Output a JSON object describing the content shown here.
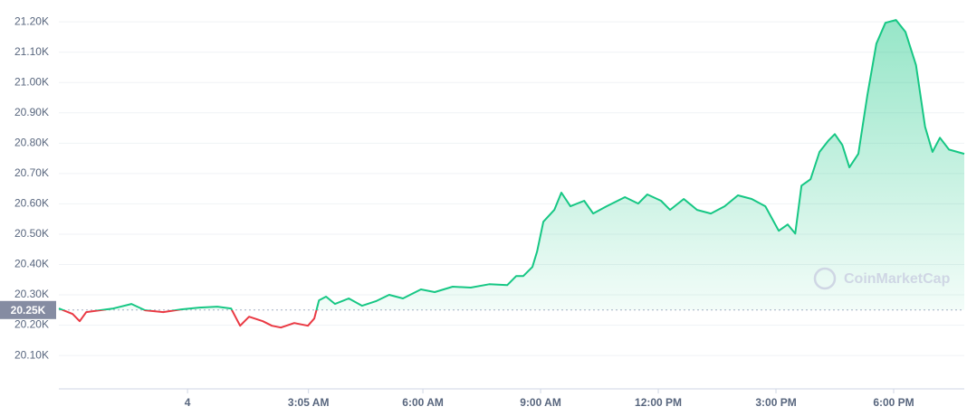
{
  "chart_data": {
    "type": "line",
    "watermark": "CoinMarketCap",
    "series": [
      {
        "color": "#16c784",
        "color_below": "#ea3943",
        "x": [
          -3.28,
          -2.93,
          -2.75,
          -2.58,
          -2.24,
          -1.89,
          -1.43,
          -1.08,
          -0.62,
          -0.16,
          0.3,
          0.76,
          1.11,
          1.34,
          1.57,
          1.92,
          2.15,
          2.38,
          2.72,
          3.07,
          3.23,
          3.35,
          3.53,
          3.76,
          4.11,
          4.45,
          4.8,
          5.14,
          5.49,
          5.95,
          6.3,
          6.76,
          7.22,
          7.69,
          8.15,
          8.38,
          8.56,
          8.79,
          8.91,
          9.07,
          9.35,
          9.53,
          9.76,
          10.11,
          10.34,
          10.68,
          11.15,
          11.49,
          11.72,
          12.07,
          12.3,
          12.65,
          12.99,
          13.34,
          13.69,
          14.03,
          14.38,
          14.73,
          15.07,
          15.3,
          15.49,
          15.65,
          15.88,
          16.11,
          16.34,
          16.5,
          16.69,
          16.87,
          17.1,
          17.33,
          17.56,
          17.79,
          18.06,
          18.3,
          18.57,
          18.8,
          18.99,
          19.18,
          19.41,
          19.8
        ],
        "values": [
          20.255,
          20.237,
          20.213,
          20.243,
          20.249,
          20.255,
          20.27,
          20.249,
          20.243,
          20.252,
          20.258,
          20.261,
          20.255,
          20.198,
          20.228,
          20.213,
          20.198,
          20.192,
          20.207,
          20.198,
          20.222,
          20.282,
          20.294,
          20.27,
          20.288,
          20.264,
          20.279,
          20.3,
          20.288,
          20.318,
          20.309,
          20.327,
          20.324,
          20.335,
          20.332,
          20.362,
          20.362,
          20.392,
          20.443,
          20.541,
          20.58,
          20.637,
          20.592,
          20.61,
          20.568,
          20.592,
          20.622,
          20.601,
          20.631,
          20.61,
          20.58,
          20.616,
          20.58,
          20.568,
          20.592,
          20.628,
          20.616,
          20.592,
          20.511,
          20.532,
          20.502,
          20.66,
          20.681,
          20.771,
          20.809,
          20.83,
          20.794,
          20.72,
          20.765,
          20.959,
          21.128,
          21.197,
          21.206,
          21.167,
          21.057,
          20.854,
          20.771,
          20.818,
          20.779,
          20.765
        ]
      }
    ],
    "reference_line": {
      "value": 20.25,
      "label": "20.25K"
    },
    "xlim": [
      -3.28,
      19.8
    ],
    "xticks": [
      {
        "value": 0,
        "label": "4"
      },
      {
        "value": 3.083,
        "label": "3:05 AM"
      },
      {
        "value": 6,
        "label": "6:00 AM"
      },
      {
        "value": 9,
        "label": "9:00 AM"
      },
      {
        "value": 12,
        "label": "12:00 PM"
      },
      {
        "value": 15,
        "label": "3:00 PM"
      },
      {
        "value": 18,
        "label": "6:00 PM"
      }
    ],
    "ylim": [
      19.99,
      21.272
    ],
    "yticks": [
      {
        "value": 20.1,
        "label": "20.10K"
      },
      {
        "value": 20.2,
        "label": "20.20K"
      },
      {
        "value": 20.3,
        "label": "20.30K"
      },
      {
        "value": 20.4,
        "label": "20.40K"
      },
      {
        "value": 20.5,
        "label": "20.50K"
      },
      {
        "value": 20.6,
        "label": "20.60K"
      },
      {
        "value": 20.7,
        "label": "20.70K"
      },
      {
        "value": 20.8,
        "label": "20.80K"
      },
      {
        "value": 20.9,
        "label": "20.90K"
      },
      {
        "value": 21.0,
        "label": "21.00K"
      },
      {
        "value": 21.1,
        "label": "21.10K"
      },
      {
        "value": 21.2,
        "label": "21.20K"
      }
    ],
    "grid": true
  }
}
